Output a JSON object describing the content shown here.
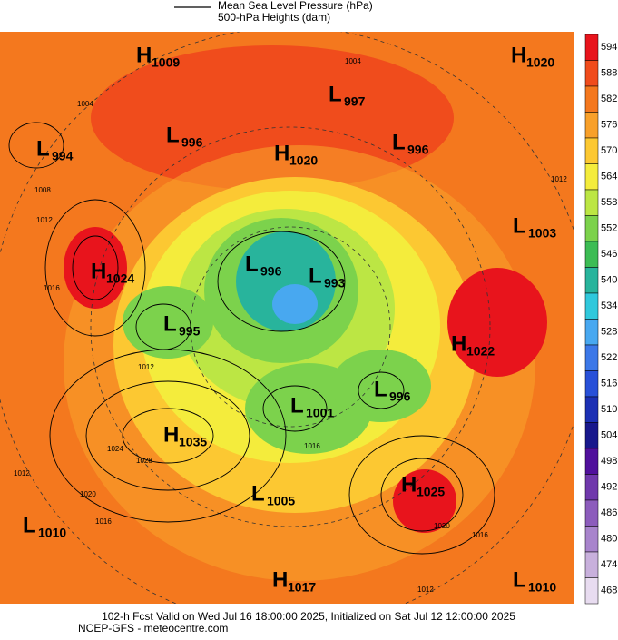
{
  "legend": {
    "line_label": "Mean Sea Level Pressure (hPa)",
    "fill_label": "500-hPa Heights (dam)"
  },
  "colorbar": {
    "labels": [
      594,
      588,
      582,
      576,
      570,
      564,
      558,
      552,
      546,
      540,
      534,
      528,
      522,
      516,
      510,
      504,
      498,
      492,
      486,
      480,
      474,
      468
    ],
    "colors": [
      "#e8141c",
      "#f04c1c",
      "#f4781e",
      "#f8a02a",
      "#fcc832",
      "#f4ec3c",
      "#bce644",
      "#7cd24c",
      "#3cbc54",
      "#28b49c",
      "#30c8dc",
      "#48a8f0",
      "#3c78e8",
      "#2850d8",
      "#1c30b4",
      "#18188c",
      "#50109c",
      "#7038ac",
      "#8c5cbc",
      "#a884cc",
      "#c8b0dc",
      "#e8dcf0"
    ]
  },
  "centers": [
    {
      "letter": "H",
      "value": "1009"
    },
    {
      "letter": "H",
      "value": "1020"
    },
    {
      "letter": "L",
      "value": "997"
    },
    {
      "letter": "L",
      "value": "994"
    },
    {
      "letter": "L",
      "value": "996"
    },
    {
      "letter": "H",
      "value": "1020"
    },
    {
      "letter": "L",
      "value": "996"
    },
    {
      "letter": "L",
      "value": "1003"
    },
    {
      "letter": "H",
      "value": "1024"
    },
    {
      "letter": "L",
      "value": "996"
    },
    {
      "letter": "L",
      "value": "993"
    },
    {
      "letter": "L",
      "value": "995"
    },
    {
      "letter": "H",
      "value": "1022"
    },
    {
      "letter": "L",
      "value": "996"
    },
    {
      "letter": "L",
      "value": "1001"
    },
    {
      "letter": "H",
      "value": "1035"
    },
    {
      "letter": "H",
      "value": "1025"
    },
    {
      "letter": "L",
      "value": "1005"
    },
    {
      "letter": "L",
      "value": "1010"
    },
    {
      "letter": "H",
      "value": "1017"
    },
    {
      "letter": "L",
      "value": "1010"
    }
  ],
  "isobar_labels": [
    "1004",
    "1004",
    "1008",
    "1012",
    "1016",
    "1012",
    "1012",
    "1024",
    "1028",
    "1020",
    "1016",
    "1012",
    "1016",
    "1020",
    "1016",
    "1012"
  ],
  "footer": {
    "line1": "102-h Fcst Valid on Wed Jul 16 18:00:00 2025, Initialized on Sat Jul 12 12:00:00 2025",
    "line2": "NCEP-GFS  - meteocentre.com"
  }
}
